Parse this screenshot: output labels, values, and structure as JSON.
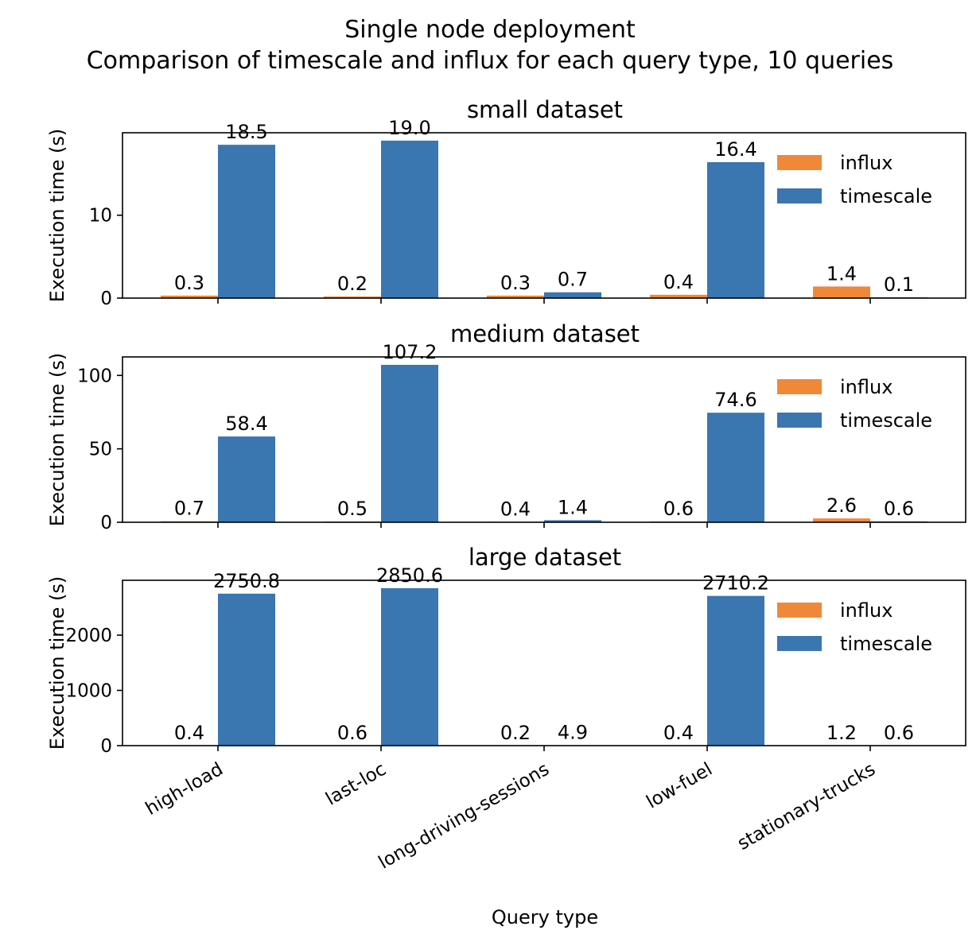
{
  "figure": {
    "title_line1": "Single node deployment",
    "title_line2": "Comparison of timescale and influx for each query type, 10 queries",
    "xlabel": "Query type"
  },
  "colors": {
    "influx": "#f0883a",
    "timescale": "#3a76b0"
  },
  "chart_data": [
    {
      "type": "bar",
      "title": "small dataset",
      "ylabel": "Execution time (s)",
      "categories": [
        "high-load",
        "last-loc",
        "long-driving-sessions",
        "low-fuel",
        "stationary-trucks"
      ],
      "series": [
        {
          "name": "influx",
          "values": [
            0.3,
            0.2,
            0.3,
            0.4,
            1.4
          ]
        },
        {
          "name": "timescale",
          "values": [
            18.5,
            19.0,
            0.7,
            16.4,
            0.1
          ]
        }
      ],
      "data_labels": {
        "influx": [
          "0.3",
          "0.2",
          "0.3",
          "0.4",
          "1.4"
        ],
        "timescale": [
          "18.5",
          "19.0",
          "0.7",
          "16.4",
          "0.1"
        ]
      },
      "ylim": [
        0,
        19.95
      ],
      "yticks": [
        0,
        10
      ],
      "ytick_labels": [
        "0",
        "10"
      ],
      "legend": "upper-right",
      "grid": false
    },
    {
      "type": "bar",
      "title": "medium dataset",
      "ylabel": "Execution time (s)",
      "categories": [
        "high-load",
        "last-loc",
        "long-driving-sessions",
        "low-fuel",
        "stationary-trucks"
      ],
      "series": [
        {
          "name": "influx",
          "values": [
            0.7,
            0.5,
            0.4,
            0.6,
            2.6
          ]
        },
        {
          "name": "timescale",
          "values": [
            58.4,
            107.2,
            1.4,
            74.6,
            0.6
          ]
        }
      ],
      "data_labels": {
        "influx": [
          "0.7",
          "0.5",
          "0.4",
          "0.6",
          "2.6"
        ],
        "timescale": [
          "58.4",
          "107.2",
          "1.4",
          "74.6",
          "0.6"
        ]
      },
      "ylim": [
        0,
        112.6
      ],
      "yticks": [
        0,
        50,
        100
      ],
      "ytick_labels": [
        "0",
        "50",
        "100"
      ],
      "legend": "upper-right",
      "grid": false
    },
    {
      "type": "bar",
      "title": "large dataset",
      "ylabel": "Execution time (s)",
      "categories": [
        "high-load",
        "last-loc",
        "long-driving-sessions",
        "low-fuel",
        "stationary-trucks"
      ],
      "series": [
        {
          "name": "influx",
          "values": [
            0.4,
            0.6,
            0.2,
            0.4,
            1.2
          ]
        },
        {
          "name": "timescale",
          "values": [
            2750.8,
            2850.6,
            4.9,
            2710.2,
            0.6
          ]
        }
      ],
      "data_labels": {
        "influx": [
          "0.4",
          "0.6",
          "0.2",
          "0.4",
          "1.2"
        ],
        "timescale": [
          "2750.8",
          "2850.6",
          "4.9",
          "2710.2",
          "0.6"
        ]
      },
      "ylim": [
        0,
        2993
      ],
      "yticks": [
        0,
        1000,
        2000
      ],
      "ytick_labels": [
        "0",
        "1000",
        "2000"
      ],
      "legend": "upper-right",
      "grid": false
    }
  ]
}
